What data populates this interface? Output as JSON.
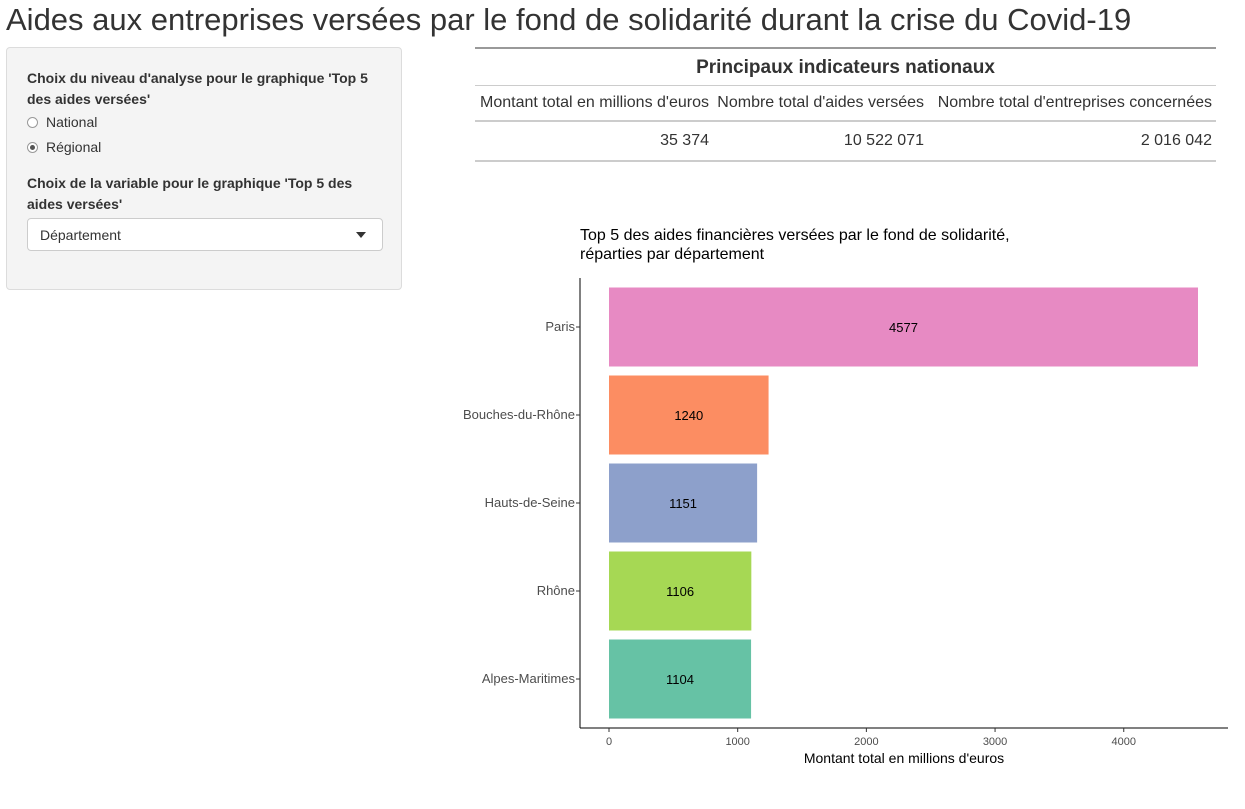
{
  "page": {
    "title": "Aides aux entreprises versées par le fond de solidarité durant la crise du Covid-19"
  },
  "sidebar": {
    "level_label": "Choix du niveau d'analyse pour le graphique 'Top 5 des aides versées'",
    "level_options": [
      {
        "label": "National",
        "checked": false
      },
      {
        "label": "Régional",
        "checked": true
      }
    ],
    "variable_label": "Choix de la variable pour le graphique 'Top 5 des aides versées'",
    "variable_selected": "Département"
  },
  "kpi": {
    "title": "Principaux indicateurs nationaux",
    "headers": [
      "Montant total en millions d'euros",
      "Nombre total d'aides versées",
      "Nombre total d'entreprises concernées"
    ],
    "values": [
      "35 374",
      "10 522 071",
      "2 016 042"
    ]
  },
  "chart_data": {
    "type": "bar",
    "orientation": "horizontal",
    "title": "Top 5 des aides financières versées par le fond de solidarité, réparties par département",
    "xlabel": "Montant total en millions d'euros",
    "ylabel": "",
    "categories": [
      "Paris",
      "Bouches-du-Rhône",
      "Hauts-de-Seine",
      "Rhône",
      "Alpes-Maritimes"
    ],
    "values": [
      4577,
      1240,
      1151,
      1106,
      1104
    ],
    "colors": [
      "#e78ac3",
      "#fc8d62",
      "#8da0cb",
      "#a6d854",
      "#66c2a5"
    ],
    "xlim": [
      0,
      4577
    ],
    "xticks": [
      0,
      1000,
      2000,
      3000,
      4000
    ],
    "grid": false,
    "legend": "none"
  }
}
